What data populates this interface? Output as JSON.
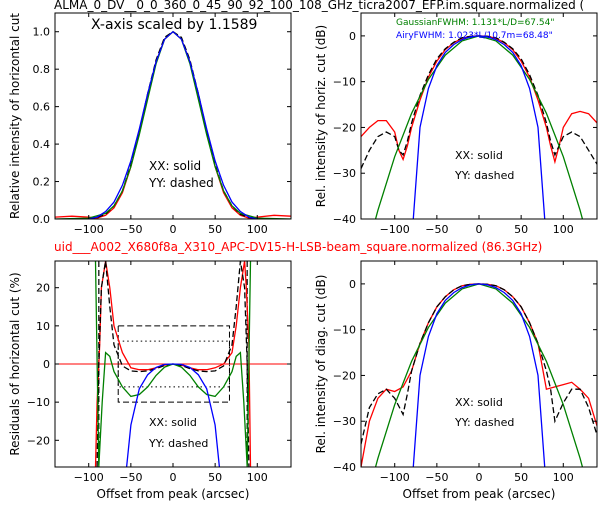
{
  "title_top": "ALMA_0_DV__0_0_360_0_45_90_92_100_108_GHz_ticra2007_EFP.im.square.normalized (",
  "title_mid": "uid___A002_X680f8a_X310_APC-DV15-H-LSB-beam_square.normalized (86.3GHz)",
  "colors": {
    "xx": "#ff0000",
    "yy": "#000000",
    "gauss": "#008000",
    "airy": "#0000ff",
    "mid_title": "#ff0000"
  },
  "chart_data": [
    {
      "id": "top-left",
      "type": "line",
      "ylabel": "Relative intensity of horizontal cut",
      "xlabel": "",
      "xlim": [
        -140,
        140
      ],
      "ylim": [
        0,
        1.1
      ],
      "xticks": [
        -100,
        -50,
        0,
        50,
        100
      ],
      "xticklabels": [
        "−100",
        "−50",
        "0",
        "50",
        "100"
      ],
      "yticks": [
        0.0,
        0.2,
        0.4,
        0.6,
        0.8,
        1.0
      ],
      "yticklabels": [
        "0.0",
        "0.2",
        "0.4",
        "0.6",
        "0.8",
        "1.0"
      ],
      "annotations": [
        "X-axis scaled by 1.1589",
        "XX: solid",
        "YY: dashed"
      ],
      "series": [
        {
          "x": [
            -140,
            -120,
            -100,
            -90,
            -80,
            -70,
            -60,
            -50,
            -40,
            -30,
            -20,
            -10,
            0,
            10,
            20,
            30,
            40,
            50,
            60,
            70,
            80,
            90,
            100,
            120,
            140
          ],
          "y": [
            0.01,
            0.015,
            0.01,
            0.005,
            0.02,
            0.06,
            0.14,
            0.28,
            0.46,
            0.66,
            0.84,
            0.96,
            1.0,
            0.96,
            0.84,
            0.66,
            0.46,
            0.28,
            0.14,
            0.06,
            0.02,
            0.005,
            0.01,
            0.02,
            0.015
          ]
        },
        {
          "x": [
            -100,
            -90,
            -80,
            -70,
            -60,
            -50,
            -40,
            -30,
            -20,
            -10,
            0,
            10,
            20,
            30,
            40,
            50,
            60,
            70,
            80,
            90,
            100
          ],
          "y": [
            0.005,
            0.008,
            0.025,
            0.07,
            0.15,
            0.29,
            0.47,
            0.67,
            0.85,
            0.97,
            1.0,
            0.97,
            0.85,
            0.67,
            0.47,
            0.29,
            0.15,
            0.07,
            0.025,
            0.008,
            0.005
          ]
        },
        {
          "x": [
            -140,
            -100,
            -80,
            -70,
            -60,
            -50,
            -40,
            -30,
            -20,
            -10,
            0,
            10,
            20,
            30,
            40,
            50,
            60,
            70,
            80,
            100,
            140
          ],
          "y": [
            0,
            0.005,
            0.03,
            0.07,
            0.15,
            0.28,
            0.45,
            0.64,
            0.83,
            0.96,
            1.0,
            0.96,
            0.83,
            0.64,
            0.45,
            0.28,
            0.15,
            0.07,
            0.03,
            0.005,
            0
          ]
        },
        {
          "x": [
            -100,
            -90,
            -80,
            -70,
            -60,
            -50,
            -40,
            -30,
            -20,
            -10,
            0,
            10,
            20,
            30,
            40,
            50,
            60,
            70,
            80,
            90,
            100
          ],
          "y": [
            0,
            0.01,
            0.04,
            0.09,
            0.18,
            0.31,
            0.48,
            0.67,
            0.84,
            0.96,
            1.0,
            0.96,
            0.84,
            0.67,
            0.48,
            0.31,
            0.18,
            0.09,
            0.04,
            0.01,
            0
          ]
        }
      ]
    },
    {
      "id": "top-right",
      "type": "line",
      "ylabel": "Rel. intensity of horiz. cut (dB)",
      "xlabel": "",
      "xlim": [
        -140,
        140
      ],
      "ylim": [
        -40,
        5
      ],
      "xticks": [
        -100,
        -50,
        0,
        50,
        100
      ],
      "xticklabels": [
        "−100",
        "−50",
        "0",
        "50",
        "100"
      ],
      "yticks": [
        0,
        -10,
        -20,
        -30,
        -40
      ],
      "yticklabels": [
        "0",
        "−10",
        "−20",
        "−30",
        "−40"
      ],
      "annotations": [
        "XX: solid",
        "YY: dashed"
      ],
      "legend": [
        "GaussianFWHM: 1.131*L/D=67.54\"",
        "AiryFWHM: 1.023*L/10.7m=68.48\""
      ],
      "series": [
        {
          "x": [
            -140,
            -130,
            -120,
            -110,
            -100,
            -95,
            -90,
            -85,
            -80,
            -70,
            -60,
            -50,
            -40,
            -30,
            -20,
            -10,
            0,
            10,
            20,
            30,
            40,
            50,
            60,
            70,
            80,
            85,
            90,
            95,
            100,
            110,
            120,
            130,
            140
          ],
          "y": [
            -22,
            -20,
            -18.5,
            -18.5,
            -21,
            -25,
            -27,
            -24,
            -20,
            -14,
            -9,
            -5.5,
            -3,
            -1.5,
            -0.5,
            -0.1,
            0,
            -0.1,
            -0.5,
            -1.5,
            -3,
            -5.5,
            -9,
            -14,
            -20,
            -24,
            -27.5,
            -24,
            -20,
            -17,
            -16.5,
            -17,
            -19
          ]
        },
        {
          "x": [
            -140,
            -130,
            -120,
            -110,
            -100,
            -95,
            -90,
            -85,
            -80,
            -70,
            -60,
            -50,
            -40,
            -30,
            -20,
            -10,
            0,
            10,
            20,
            30,
            40,
            50,
            60,
            70,
            80,
            85,
            90,
            95,
            100,
            110,
            120,
            130,
            140
          ],
          "y": [
            -29,
            -25,
            -22,
            -21,
            -22,
            -25,
            -26,
            -23,
            -19,
            -13,
            -8.5,
            -5,
            -2.8,
            -1.4,
            -0.4,
            -0.1,
            0,
            -0.1,
            -0.4,
            -1.4,
            -2.8,
            -5,
            -8.5,
            -13,
            -19,
            -23,
            -26,
            -24,
            -22,
            -21,
            -22,
            -25,
            -28
          ]
        },
        {
          "x": [
            -140,
            -120,
            -100,
            -80,
            -60,
            -40,
            -20,
            0,
            20,
            40,
            60,
            80,
            100,
            120,
            140
          ],
          "y": [
            -51.8,
            -38.1,
            -26.4,
            -16.9,
            -9.5,
            -4.2,
            -1.1,
            0,
            -1.1,
            -4.2,
            -9.5,
            -16.9,
            -26.4,
            -38.1,
            -51.8
          ]
        },
        {
          "x": [
            -80,
            -70,
            -60,
            -50,
            -40,
            -30,
            -20,
            -10,
            0,
            10,
            20,
            30,
            40,
            50,
            60,
            70,
            80
          ],
          "y": [
            -45,
            -20,
            -11.5,
            -6.5,
            -3.6,
            -1.9,
            -0.8,
            -0.2,
            0,
            -0.2,
            -0.8,
            -1.9,
            -3.6,
            -6.5,
            -11.5,
            -20,
            -45
          ]
        }
      ]
    },
    {
      "id": "bottom-left",
      "type": "line",
      "ylabel": "Residuals of horizontal cut (%)",
      "xlabel": "Offset from peak (arcsec)",
      "xlim": [
        -140,
        140
      ],
      "ylim": [
        -27,
        27
      ],
      "xticks": [
        -100,
        -50,
        0,
        50,
        100
      ],
      "xticklabels": [
        "−100",
        "−50",
        "0",
        "50",
        "100"
      ],
      "yticks": [
        20,
        10,
        0,
        -10,
        -20
      ],
      "yticklabels": [
        "20",
        "10",
        "0",
        "−10",
        "−20"
      ],
      "annotations": [
        "XX: solid",
        "YY: dashed"
      ],
      "series": [
        {
          "x": [
            -92,
            -90,
            -87,
            -85,
            -80,
            -75,
            -70,
            -60,
            -50,
            -40,
            -30,
            -20,
            -10,
            0,
            10,
            20,
            30,
            40,
            50,
            60,
            70,
            75,
            80,
            85,
            87,
            90,
            92
          ],
          "y": [
            -27,
            -10,
            5,
            20,
            27,
            20,
            10,
            3,
            -1,
            -1.5,
            -1.5,
            -1,
            -0.3,
            0,
            -0.3,
            -1,
            -1.5,
            -1.5,
            -1,
            0,
            3,
            10,
            20,
            27,
            20,
            5,
            -27
          ]
        },
        {
          "x": [
            -90,
            -88,
            -85,
            -80,
            -75,
            -70,
            -60,
            -50,
            -40,
            -30,
            -20,
            -10,
            0,
            10,
            20,
            30,
            40,
            50,
            60,
            70,
            75,
            80,
            85,
            88,
            90
          ],
          "y": [
            -27,
            0,
            20,
            27,
            15,
            5,
            -0.5,
            -1.8,
            -2,
            -1.8,
            -1.2,
            -0.4,
            0,
            -0.4,
            -1.2,
            -1.8,
            -2,
            -1.8,
            -0.5,
            5,
            15,
            27,
            20,
            0,
            -27
          ]
        },
        {
          "x": [
            -92,
            -88,
            -84,
            -80,
            -75,
            -70,
            -60,
            -50,
            -40,
            -30,
            -20,
            -10,
            0,
            10,
            20,
            30,
            40,
            50,
            60,
            70,
            75,
            80,
            84,
            88,
            92
          ],
          "y": [
            27,
            -27,
            -10,
            3,
            2,
            -2,
            -6,
            -8.5,
            -8,
            -6,
            -3,
            -0.8,
            0,
            -0.8,
            -3,
            -6,
            -8,
            -8.5,
            -6,
            -2,
            2,
            3,
            -10,
            -27,
            27
          ]
        },
        {
          "x": [
            -55,
            -50,
            -40,
            -30,
            -20,
            -10,
            0,
            10,
            20,
            30,
            40,
            50,
            55
          ],
          "y": [
            -27,
            -16,
            -6.5,
            -2.8,
            -0.9,
            -0.1,
            0,
            -0.1,
            -0.9,
            -2.8,
            -6.5,
            -16,
            -27
          ]
        }
      ],
      "hlines": [
        0
      ],
      "boxes": [
        {
          "x": [
            -65,
            67
          ],
          "y": [
            -10,
            10
          ],
          "style": "dashed"
        },
        {
          "x": [
            -65,
            67
          ],
          "y": [
            -6,
            6
          ],
          "style": "dotted"
        }
      ],
      "vlines_dashed": [
        -88,
        88
      ]
    },
    {
      "id": "bottom-right",
      "type": "line",
      "ylabel": "Rel. intensity of diag. cut (dB)",
      "xlabel": "Offset from peak (arcsec)",
      "xlim": [
        -140,
        140
      ],
      "ylim": [
        -40,
        5
      ],
      "xticks": [
        -100,
        -50,
        0,
        50,
        100
      ],
      "xticklabels": [
        "−100",
        "−50",
        "0",
        "50",
        "100"
      ],
      "yticks": [
        0,
        -10,
        -20,
        -30,
        -40
      ],
      "yticklabels": [
        "0",
        "−10",
        "−20",
        "−30",
        "−40"
      ],
      "annotations": [
        "XX: solid",
        "YY: dashed"
      ],
      "series": [
        {
          "x": [
            -140,
            -130,
            -120,
            -110,
            -100,
            -90,
            -80,
            -70,
            -60,
            -50,
            -40,
            -30,
            -20,
            -10,
            0,
            10,
            20,
            30,
            40,
            50,
            60,
            70,
            80,
            90,
            100,
            110,
            120,
            130,
            140
          ],
          "y": [
            -40,
            -30,
            -25,
            -23,
            -23.5,
            -22.5,
            -19,
            -13,
            -8.5,
            -5,
            -2.8,
            -1.3,
            -0.4,
            -0.1,
            0,
            -0.1,
            -0.4,
            -1.3,
            -2.8,
            -5,
            -8.5,
            -13,
            -23,
            -22.5,
            -22,
            -21.5,
            -23,
            -25,
            -31
          ]
        },
        {
          "x": [
            -140,
            -130,
            -120,
            -110,
            -100,
            -90,
            -85,
            -80,
            -70,
            -60,
            -50,
            -40,
            -30,
            -20,
            -10,
            0,
            10,
            20,
            30,
            40,
            50,
            60,
            70,
            80,
            85,
            90,
            100,
            110,
            120,
            130,
            140
          ],
          "y": [
            -35,
            -27,
            -24,
            -23,
            -25,
            -28.5,
            -24,
            -19,
            -13,
            -8.5,
            -5,
            -2.8,
            -1.3,
            -0.4,
            -0.1,
            0,
            -0.1,
            -0.4,
            -1.3,
            -2.8,
            -5,
            -8.5,
            -13,
            -19,
            -23,
            -30,
            -26,
            -23,
            -23,
            -27,
            -33
          ]
        },
        {
          "x": [
            -140,
            -120,
            -100,
            -80,
            -60,
            -40,
            -20,
            0,
            20,
            40,
            60,
            80,
            100,
            120,
            140
          ],
          "y": [
            -51.8,
            -38.1,
            -26.4,
            -16.9,
            -9.5,
            -4.2,
            -1.1,
            0,
            -1.1,
            -4.2,
            -9.5,
            -16.9,
            -26.4,
            -38.1,
            -51.8
          ]
        },
        {
          "x": [
            -80,
            -70,
            -60,
            -50,
            -40,
            -30,
            -20,
            -10,
            0,
            10,
            20,
            30,
            40,
            50,
            60,
            70,
            80
          ],
          "y": [
            -45,
            -20,
            -11.5,
            -6.5,
            -3.6,
            -1.9,
            -0.8,
            -0.2,
            0,
            -0.2,
            -0.8,
            -1.9,
            -3.6,
            -6.5,
            -11.5,
            -20,
            -45
          ]
        }
      ]
    }
  ]
}
